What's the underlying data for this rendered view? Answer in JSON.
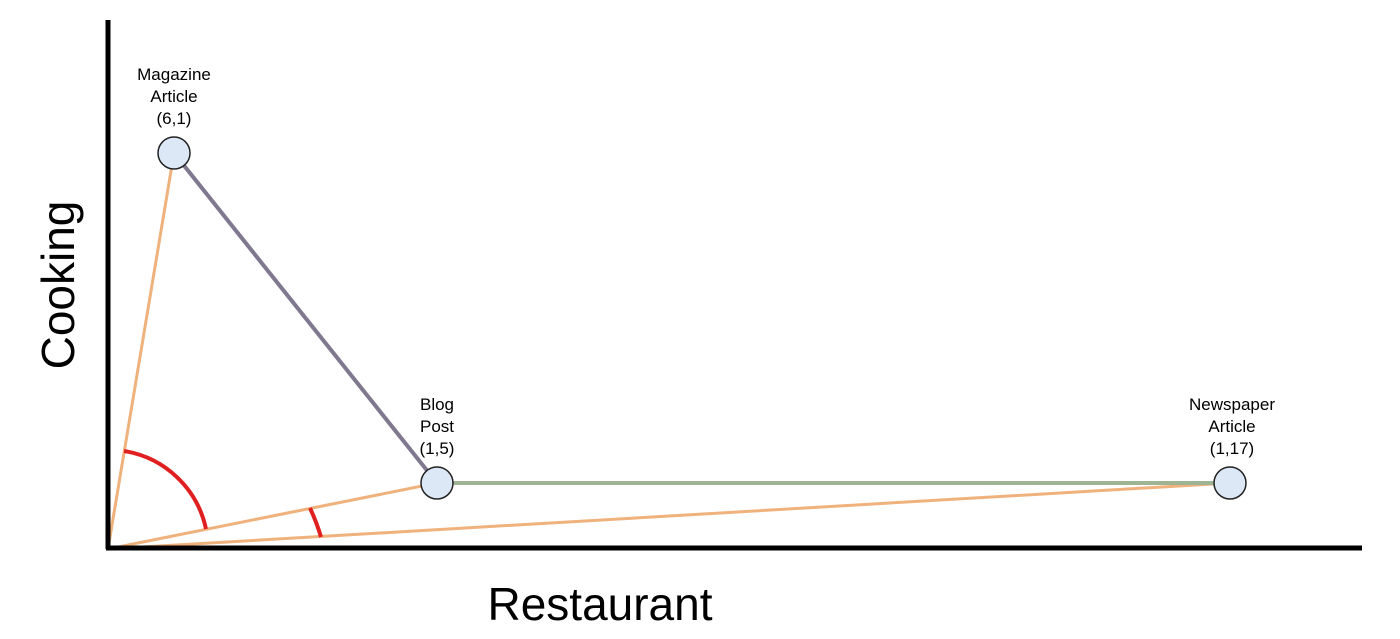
{
  "axes": {
    "x_label": "Restaurant",
    "y_label": "Cooking"
  },
  "points": [
    {
      "id": "magazine",
      "lines": [
        "Magazine",
        "Article",
        "(6,1)"
      ]
    },
    {
      "id": "blog",
      "lines": [
        "Blog",
        "Post",
        "(1,5)"
      ]
    },
    {
      "id": "newspaper",
      "lines": [
        "Newspaper",
        "Article",
        "(1,17)"
      ]
    }
  ],
  "colors": {
    "axis": "#000000",
    "vector_line": "#efb27c",
    "distance_magazine_blog": "#80788f",
    "distance_blog_newspaper": "#9fb492",
    "angle_arc": "#e02020",
    "point_fill": "#dde8f6",
    "point_stroke": "#222222"
  }
}
